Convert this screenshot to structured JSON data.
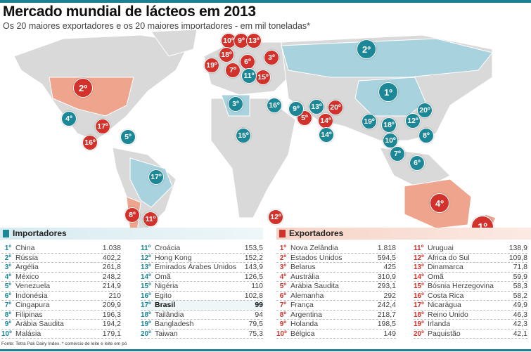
{
  "title": "Mercado mundial de lácteos em 2013",
  "subtitle": "Os 20 maiores exportadores e os 20 maiores importadores - em mil toneladas*",
  "colors": {
    "exporter": "#d2322b",
    "importer": "#1b8797",
    "land": "#d9d9d9",
    "importer_land": "#a8d2de",
    "exporter_land": "#eea48d"
  },
  "map_markers": {
    "exporters": [
      "10º",
      "9º",
      "13º",
      "18º",
      "3º",
      "6º",
      "19º",
      "7º",
      "15º",
      "2º",
      "17º",
      "16º",
      "20º",
      "5º",
      "14º",
      "8º",
      "11º",
      "12º",
      "4º",
      "1º"
    ],
    "importers": [
      "2º",
      "11º",
      "1º",
      "3º",
      "16º",
      "9º",
      "13º",
      "20º",
      "4º",
      "12º",
      "19º",
      "18º",
      "5º",
      "15º",
      "8º",
      "14º",
      "10º",
      "7º",
      "6º",
      "17º"
    ]
  },
  "importers": {
    "label": "Importadores",
    "rows": [
      {
        "rank": "1º",
        "name": "China",
        "value": "1.038"
      },
      {
        "rank": "2º",
        "name": "Rússia",
        "value": "402,2"
      },
      {
        "rank": "3º",
        "name": "Argélia",
        "value": "261,8"
      },
      {
        "rank": "4º",
        "name": "México",
        "value": "248,2"
      },
      {
        "rank": "5º",
        "name": "Venezuela",
        "value": "214,9"
      },
      {
        "rank": "6º",
        "name": "Indonésia",
        "value": "210"
      },
      {
        "rank": "7º",
        "name": "Cingapura",
        "value": "209,9"
      },
      {
        "rank": "8º",
        "name": "Filipinas",
        "value": "196,3"
      },
      {
        "rank": "9º",
        "name": "Arábia Saudita",
        "value": "194,2"
      },
      {
        "rank": "10º",
        "name": "Malásia",
        "value": "179,1"
      },
      {
        "rank": "11º",
        "name": "Croácia",
        "value": "153,5"
      },
      {
        "rank": "12º",
        "name": "Hong Kong",
        "value": "152,2"
      },
      {
        "rank": "13º",
        "name": "Emirados Árabes Unidos",
        "value": "143,9"
      },
      {
        "rank": "14º",
        "name": "Omã",
        "value": "126,5"
      },
      {
        "rank": "15º",
        "name": "Nigéria",
        "value": "110"
      },
      {
        "rank": "16º",
        "name": "Egito",
        "value": "102,8"
      },
      {
        "rank": "17º",
        "name": "Brasil",
        "value": "99"
      },
      {
        "rank": "18º",
        "name": "Tailândia",
        "value": "94"
      },
      {
        "rank": "19º",
        "name": "Bangladesh",
        "value": "79,5"
      },
      {
        "rank": "20º",
        "name": "Taiwan",
        "value": "75,3"
      }
    ]
  },
  "exporters": {
    "label": "Exportadores",
    "rows": [
      {
        "rank": "1º",
        "name": "Nova Zelândia",
        "value": "1.818"
      },
      {
        "rank": "2º",
        "name": "Estados Unidos",
        "value": "594,5"
      },
      {
        "rank": "3º",
        "name": "Belarus",
        "value": "425"
      },
      {
        "rank": "4º",
        "name": "Austrália",
        "value": "310,9"
      },
      {
        "rank": "5º",
        "name": "Arábia Saudita",
        "value": "293,1"
      },
      {
        "rank": "6º",
        "name": "Alemanha",
        "value": "292"
      },
      {
        "rank": "7º",
        "name": "França",
        "value": "242,4"
      },
      {
        "rank": "8º",
        "name": "Argentina",
        "value": "218,7"
      },
      {
        "rank": "9º",
        "name": "Holanda",
        "value": "198,5"
      },
      {
        "rank": "10º",
        "name": "Bélgica",
        "value": "149"
      },
      {
        "rank": "11º",
        "name": "Uruguai",
        "value": "138,9"
      },
      {
        "rank": "12º",
        "name": "África do Sul",
        "value": "109,8"
      },
      {
        "rank": "13º",
        "name": "Dinamarca",
        "value": "71,8"
      },
      {
        "rank": "14º",
        "name": "Omã",
        "value": "59,9"
      },
      {
        "rank": "15º",
        "name": "Bósnia Herzegovina",
        "value": "58,3"
      },
      {
        "rank": "16º",
        "name": "Costa Rica",
        "value": "58,2"
      },
      {
        "rank": "17º",
        "name": "Nicarágua",
        "value": "49,9"
      },
      {
        "rank": "18º",
        "name": "Reino Unido",
        "value": "46,3"
      },
      {
        "rank": "19º",
        "name": "Irlanda",
        "value": "42,3"
      },
      {
        "rank": "20º",
        "name": "Paquistão",
        "value": "42,1"
      }
    ]
  },
  "source": "Fonte: Tetra Pak Dairy Index. * comércio de leite e leite em pó"
}
